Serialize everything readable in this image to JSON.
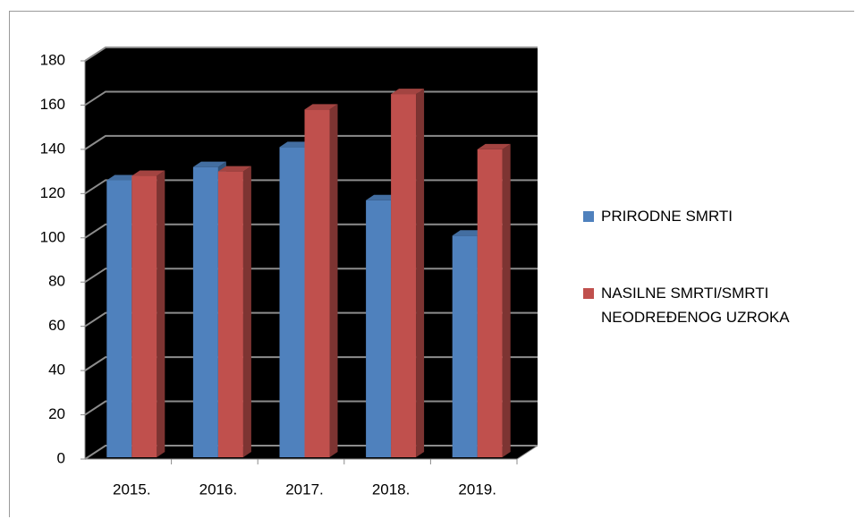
{
  "chart_data": {
    "type": "bar",
    "categories": [
      "2015.",
      "2016.",
      "2017.",
      "2018.",
      "2019."
    ],
    "series": [
      {
        "name": "PRIRODNE SMRTI",
        "color": "#4f81bd",
        "values": [
          126,
          132,
          141,
          117,
          101
        ]
      },
      {
        "name": "NASILNE SMRTI/SMRTI NEODREĐENOG UZROKA",
        "color": "#c0504d",
        "values": [
          128,
          130,
          158,
          165,
          140
        ]
      }
    ],
    "ylim": [
      0,
      180
    ],
    "yticks": [
      0,
      20,
      40,
      60,
      80,
      100,
      120,
      140,
      160,
      180
    ],
    "grid": true,
    "legend": "right"
  }
}
